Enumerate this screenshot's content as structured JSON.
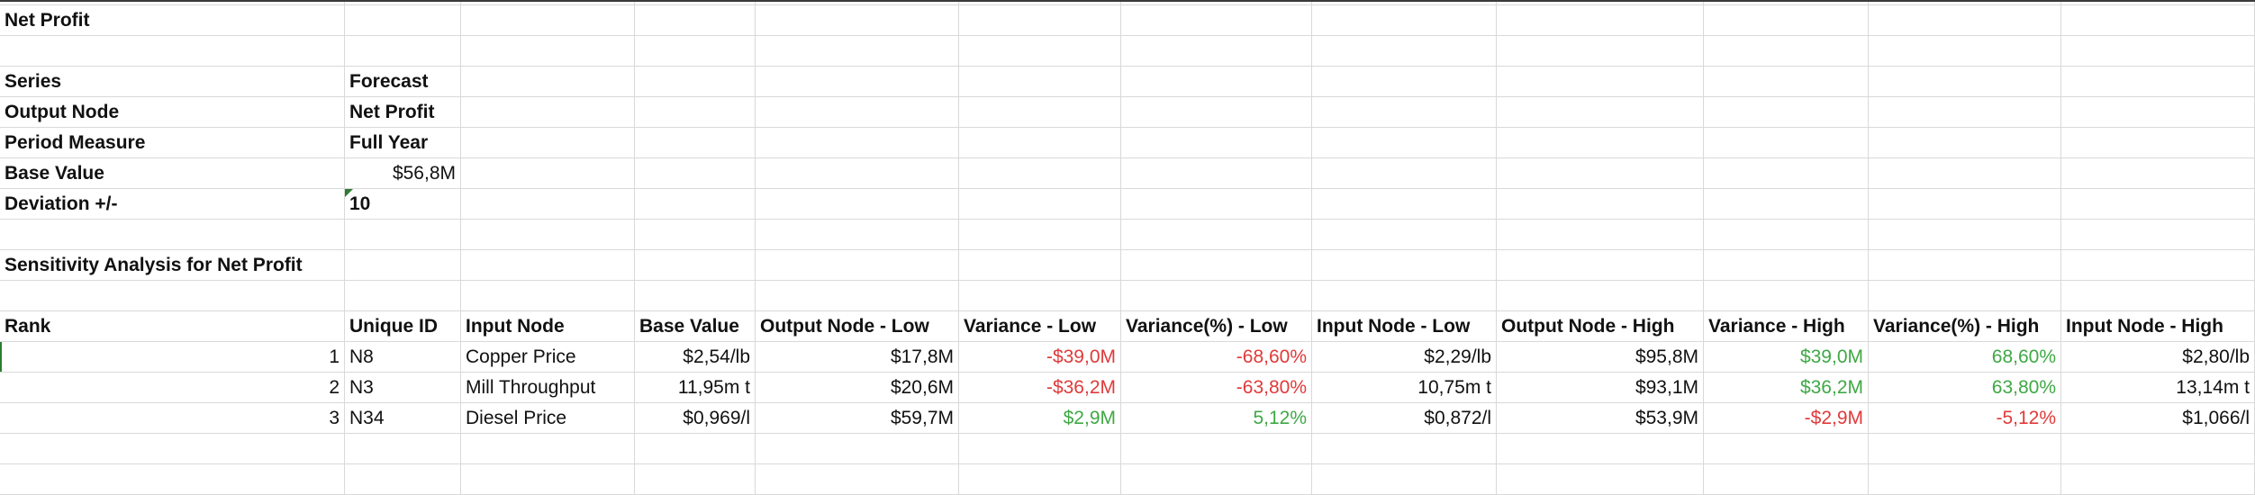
{
  "title": "Net Profit",
  "params": [
    {
      "label": "Series",
      "value": "Forecast"
    },
    {
      "label": "Output Node",
      "value": "Net Profit"
    },
    {
      "label": "Period Measure",
      "value": "Full Year"
    },
    {
      "label": "Base Value",
      "value": "$56,8M"
    },
    {
      "label": "Deviation +/-",
      "value": "10"
    }
  ],
  "section_title": "Sensitivity Analysis for Net Profit",
  "table": {
    "headers": [
      "Rank",
      "Unique ID",
      "Input Node",
      "Base Value",
      "Output Node - Low",
      "Variance - Low",
      "Variance(%) - Low",
      "Input Node - Low",
      "Output Node - High",
      "Variance - High",
      "Variance(%) - High",
      "Input Node - High"
    ],
    "rows": [
      [
        "1",
        "N8",
        "Copper Price",
        "$2,54/lb",
        "$17,8M",
        "-$39,0M",
        "-68,60%",
        "$2,29/lb",
        "$95,8M",
        "$39,0M",
        "68,60%",
        "$2,80/lb"
      ],
      [
        "2",
        "N3",
        "Mill Throughput",
        "11,95m t",
        "$20,6M",
        "-$36,2M",
        "-63,80%",
        "10,75m t",
        "$93,1M",
        "$36,2M",
        "63,80%",
        "13,14m t"
      ],
      [
        "3",
        "N34",
        "Diesel Price",
        "$0,969/l",
        "$59,7M",
        "$2,9M",
        "5,12%",
        "$0,872/l",
        "$53,9M",
        "-$2,9M",
        "-5,12%",
        "$1,066/l"
      ]
    ]
  },
  "colors": {
    "negative": "#e03a3a",
    "positive": "#3fa845",
    "gridline": "#d9d9d9",
    "flag": "#2e7d32"
  }
}
